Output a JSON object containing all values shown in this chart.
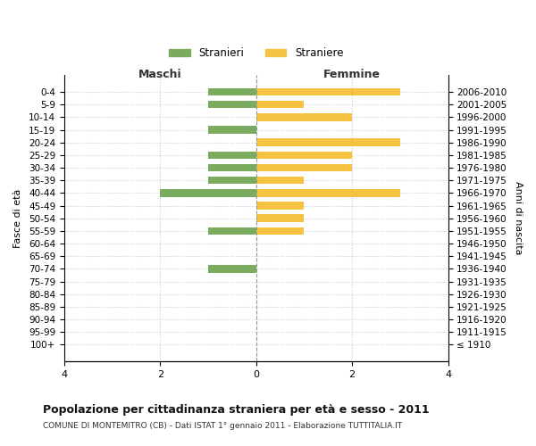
{
  "age_groups": [
    "100+",
    "95-99",
    "90-94",
    "85-89",
    "80-84",
    "75-79",
    "70-74",
    "65-69",
    "60-64",
    "55-59",
    "50-54",
    "45-49",
    "40-44",
    "35-39",
    "30-34",
    "25-29",
    "20-24",
    "15-19",
    "10-14",
    "5-9",
    "0-4"
  ],
  "birth_years": [
    "≤ 1910",
    "1911-1915",
    "1916-1920",
    "1921-1925",
    "1926-1930",
    "1931-1935",
    "1936-1940",
    "1941-1945",
    "1946-1950",
    "1951-1955",
    "1956-1960",
    "1961-1965",
    "1966-1970",
    "1971-1975",
    "1976-1980",
    "1981-1985",
    "1986-1990",
    "1991-1995",
    "1996-2000",
    "2001-2005",
    "2006-2010"
  ],
  "maschi": [
    0,
    0,
    0,
    0,
    0,
    0,
    1,
    0,
    0,
    1,
    0,
    0,
    2,
    1,
    1,
    1,
    0,
    1,
    0,
    1,
    1
  ],
  "femmine": [
    0,
    0,
    0,
    0,
    0,
    0,
    0,
    0,
    0,
    1,
    1,
    1,
    3,
    1,
    2,
    2,
    3,
    0,
    2,
    1,
    3
  ],
  "color_maschi": "#7aab5e",
  "color_femmine": "#f5c242",
  "title": "Popolazione per cittadinanza straniera per età e sesso - 2011",
  "subtitle": "COMUNE DI MONTEMITRO (CB) - Dati ISTAT 1° gennaio 2011 - Elaborazione TUTTITALIA.IT",
  "xlabel_left": "Maschi",
  "xlabel_right": "Femmine",
  "ylabel_left": "Fasce di età",
  "ylabel_right": "Anni di nascita",
  "legend_maschi": "Stranieri",
  "legend_femmine": "Straniere",
  "xlim": 4,
  "background_color": "#ffffff",
  "grid_color": "#cccccc"
}
